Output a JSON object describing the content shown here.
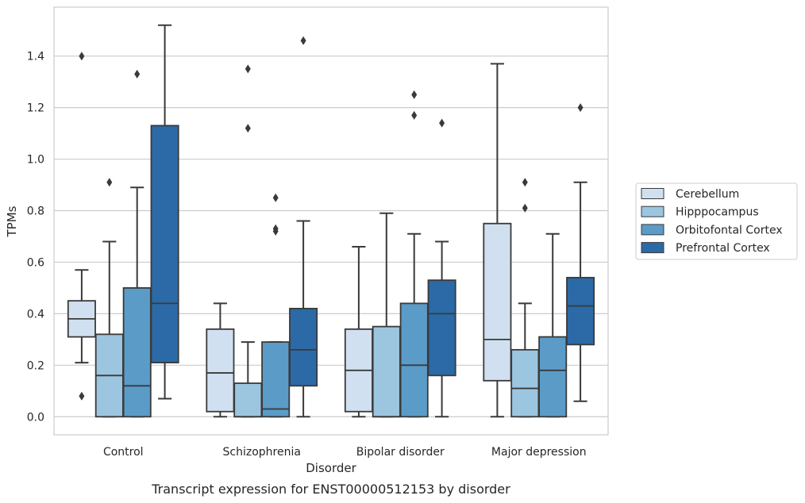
{
  "chart_data": {
    "type": "boxplot",
    "caption": "Transcript expression for ENST00000512153 by disorder",
    "xlabel": "Disorder",
    "ylabel": "TPMs",
    "ylim": [
      -0.07,
      1.59
    ],
    "yticks": [
      0.0,
      0.2,
      0.4,
      0.6,
      0.8,
      1.0,
      1.2,
      1.4
    ],
    "ytick_labels": [
      "0.0",
      "0.2",
      "0.4",
      "0.6",
      "0.8",
      "1.0",
      "1.2",
      "1.4"
    ],
    "grid": "horizontal",
    "legend_position": "right",
    "categories": [
      "Control",
      "Schizophrenia",
      "Bipolar disorder",
      "Major depression"
    ],
    "series": [
      {
        "name": "Cerebellum",
        "color": "#d0e0f0",
        "boxes": [
          {
            "whislo": 0.21,
            "q1": 0.31,
            "med": 0.38,
            "q3": 0.45,
            "whishi": 0.57,
            "fliers": [
              0.08,
              1.4
            ]
          },
          {
            "whislo": 0.0,
            "q1": 0.02,
            "med": 0.17,
            "q3": 0.34,
            "whishi": 0.44,
            "fliers": []
          },
          {
            "whislo": 0.0,
            "q1": 0.02,
            "med": 0.18,
            "q3": 0.34,
            "whishi": 0.66,
            "fliers": []
          },
          {
            "whislo": 0.0,
            "q1": 0.14,
            "med": 0.3,
            "q3": 0.75,
            "whishi": 1.37,
            "fliers": []
          }
        ]
      },
      {
        "name": "Hipppocampus",
        "color": "#9cc5e0",
        "boxes": [
          {
            "whislo": 0.0,
            "q1": 0.0,
            "med": 0.16,
            "q3": 0.32,
            "whishi": 0.68,
            "fliers": [
              0.91
            ]
          },
          {
            "whislo": 0.0,
            "q1": 0.0,
            "med": 0.0,
            "q3": 0.13,
            "whishi": 0.29,
            "fliers": [
              1.12,
              1.35
            ]
          },
          {
            "whislo": 0.0,
            "q1": 0.0,
            "med": 0.0,
            "q3": 0.35,
            "whishi": 0.79,
            "fliers": []
          },
          {
            "whislo": 0.0,
            "q1": 0.0,
            "med": 0.11,
            "q3": 0.26,
            "whishi": 0.44,
            "fliers": [
              0.81,
              0.91
            ]
          }
        ]
      },
      {
        "name": "Orbitofontal Cortex",
        "color": "#5b9bc8",
        "boxes": [
          {
            "whislo": 0.0,
            "q1": 0.0,
            "med": 0.12,
            "q3": 0.5,
            "whishi": 0.89,
            "fliers": [
              1.33
            ]
          },
          {
            "whislo": 0.0,
            "q1": 0.0,
            "med": 0.03,
            "q3": 0.29,
            "whishi": 0.29,
            "fliers": [
              0.72,
              0.73,
              0.85
            ]
          },
          {
            "whislo": 0.0,
            "q1": 0.0,
            "med": 0.2,
            "q3": 0.44,
            "whishi": 0.71,
            "fliers": [
              1.17,
              1.25
            ]
          },
          {
            "whislo": 0.0,
            "q1": 0.0,
            "med": 0.18,
            "q3": 0.31,
            "whishi": 0.71,
            "fliers": []
          }
        ]
      },
      {
        "name": "Prefrontal Cortex",
        "color": "#2b6aa6",
        "boxes": [
          {
            "whislo": 0.07,
            "q1": 0.21,
            "med": 0.44,
            "q3": 1.13,
            "whishi": 1.52,
            "fliers": []
          },
          {
            "whislo": 0.0,
            "q1": 0.12,
            "med": 0.26,
            "q3": 0.42,
            "whishi": 0.76,
            "fliers": [
              1.46
            ]
          },
          {
            "whislo": 0.0,
            "q1": 0.16,
            "med": 0.4,
            "q3": 0.53,
            "whishi": 0.68,
            "fliers": [
              1.14
            ]
          },
          {
            "whislo": 0.06,
            "q1": 0.28,
            "med": 0.43,
            "q3": 0.54,
            "whishi": 0.91,
            "fliers": [
              1.2
            ]
          }
        ]
      }
    ]
  }
}
